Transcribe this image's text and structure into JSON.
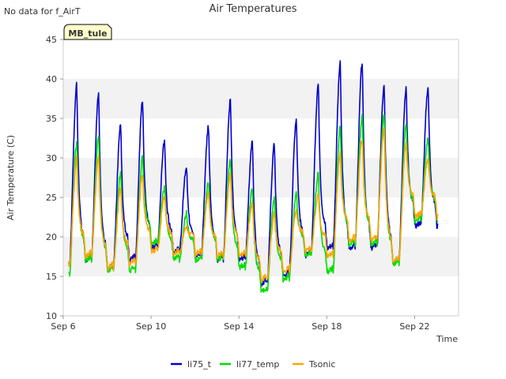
{
  "note": "No data for f_AirT",
  "badge": "MB_tule",
  "colors": {
    "li75_t": "#0000cc",
    "li77_temp": "#00dd00",
    "Tsonic": "#ffa500",
    "band": "#f2f2f2"
  },
  "chart_data": {
    "type": "line",
    "title": "Air Temperatures",
    "xlabel": "Time",
    "ylabel": "Air Temperature (C)",
    "xlim": [
      "2023-09-06",
      "2023-09-24"
    ],
    "ylim": [
      10,
      45
    ],
    "yticks": [
      10,
      15,
      20,
      25,
      30,
      35,
      40,
      45
    ],
    "xticks": [
      "Sep 6",
      "Sep 10",
      "Sep 14",
      "Sep 18",
      "Sep 22"
    ],
    "grid": "alternating horizontal bands",
    "legend": "bottom-center",
    "series": [
      {
        "name": "li75_t",
        "peaks": [
          39.3,
          38.2,
          34.1,
          37.4,
          32.3,
          28.8,
          34.0,
          37.4,
          32.1,
          31.8,
          35.0,
          39.4,
          42.0,
          42.1,
          39.2,
          39.0
        ],
        "troughs": [
          16.0,
          17.0,
          16.0,
          17.0,
          18.5,
          18.0,
          17.5,
          17.0,
          17.0,
          14.0,
          15.0,
          17.5,
          18.5,
          18.5,
          18.5,
          17.0,
          21.3
        ]
      },
      {
        "name": "li77_temp",
        "peaks": [
          32.0,
          32.8,
          28.0,
          30.2,
          26.3,
          23.0,
          27.0,
          29.8,
          26.2,
          25.0,
          25.6,
          28.0,
          34.0,
          35.2,
          35.7,
          34.3,
          32.5
        ],
        "troughs": [
          15.0,
          17.0,
          15.7,
          15.7,
          19.0,
          17.0,
          17.0,
          17.0,
          16.0,
          13.0,
          14.5,
          17.5,
          15.5,
          19.0,
          19.0,
          16.5,
          22.0
        ]
      },
      {
        "name": "Tsonic",
        "peaks": [
          30.0,
          30.2,
          26.0,
          28.0,
          25.2,
          21.3,
          25.5,
          28.0,
          24.2,
          23.0,
          23.5,
          25.5,
          30.5,
          32.3,
          33.8,
          32.0,
          30.0
        ],
        "troughs": [
          16.0,
          17.5,
          16.0,
          16.5,
          18.0,
          17.8,
          17.7,
          17.5,
          17.5,
          14.5,
          15.5,
          18.0,
          17.5,
          19.5,
          19.5,
          17.0,
          22.5
        ]
      }
    ]
  }
}
